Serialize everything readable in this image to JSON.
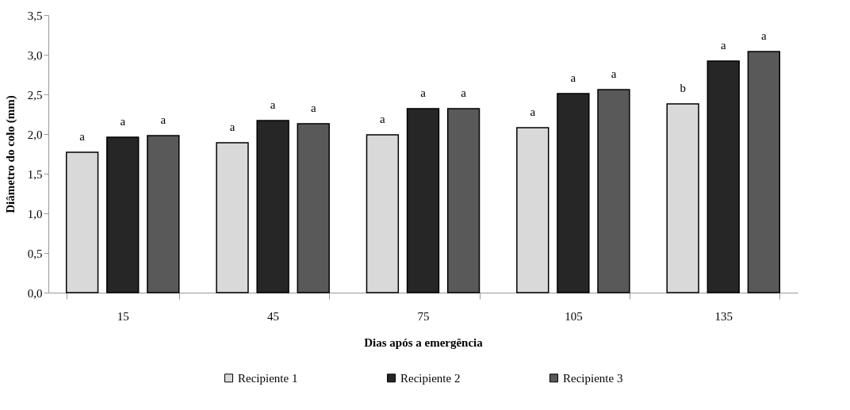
{
  "chart_data": {
    "type": "bar",
    "xlabel": "Dias após a emergência",
    "ylabel": "Diâmetro do colo (mm)",
    "categories": [
      "15",
      "45",
      "75",
      "105",
      "135"
    ],
    "series": [
      {
        "name": "Recipiente 1",
        "color": "#d9d9d9",
        "values": [
          1.77,
          1.89,
          1.99,
          2.08,
          2.38
        ],
        "value_labels": [
          "a",
          "a",
          "a",
          "a",
          "b"
        ]
      },
      {
        "name": "Recipiente 2",
        "color": "#262626",
        "values": [
          1.96,
          2.17,
          2.32,
          2.51,
          2.92
        ],
        "value_labels": [
          "a",
          "a",
          "a",
          "a",
          "a"
        ]
      },
      {
        "name": "Recipiente 3",
        "color": "#595959",
        "values": [
          1.98,
          2.13,
          2.32,
          2.56,
          3.04
        ],
        "value_labels": [
          "a",
          "a",
          "a",
          "a",
          "a"
        ]
      }
    ],
    "ylim": [
      0,
      3.5
    ],
    "yticks": [
      {
        "value": 0,
        "label": "0,0"
      },
      {
        "value": 0.5,
        "label": "0,5"
      },
      {
        "value": 1,
        "label": "1,0"
      },
      {
        "value": 1.5,
        "label": "1,5"
      },
      {
        "value": 2,
        "label": "2,0"
      },
      {
        "value": 2.5,
        "label": "2,5"
      },
      {
        "value": 3,
        "label": "3,0"
      },
      {
        "value": 3.5,
        "label": "3,5"
      }
    ],
    "grid": false,
    "legend": "bottom"
  }
}
